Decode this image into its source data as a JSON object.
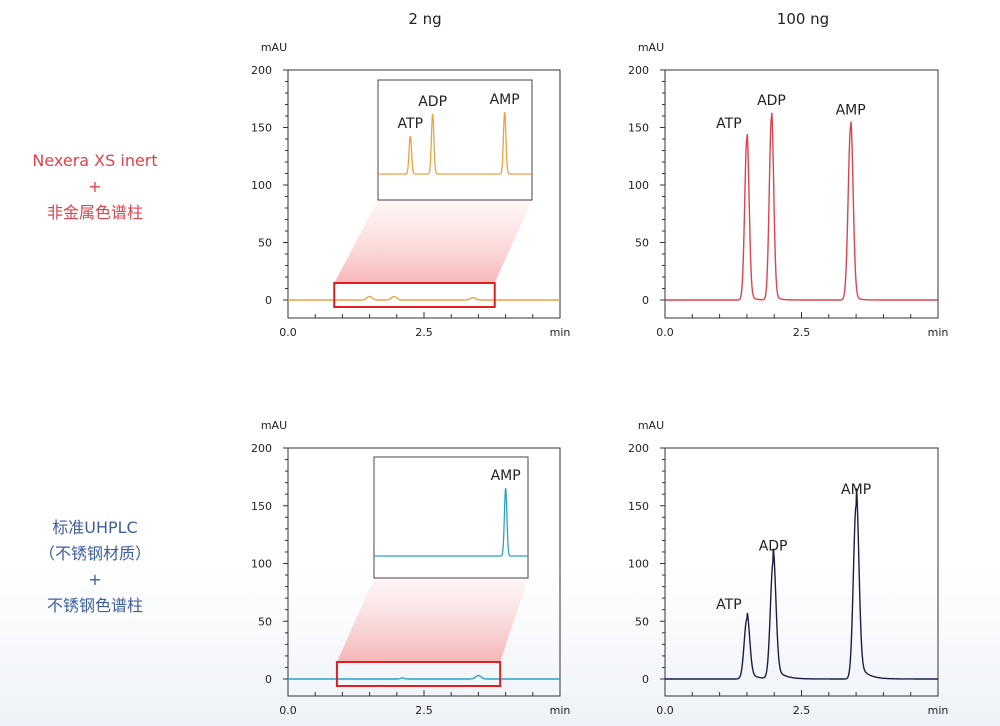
{
  "columns": [
    "2 ng",
    "100 ng"
  ],
  "rows": [
    {
      "lines": [
        "Nexera XS inert",
        "+",
        "非金属色谱柱"
      ],
      "color": "#e0424b"
    },
    {
      "lines": [
        "标准UHPLC",
        "（不锈钢材质）",
        "+",
        "不锈钢色谱柱"
      ],
      "color": "#3d5e9e"
    }
  ],
  "colors": {
    "orange": "#f0a040",
    "red": "#e0424b",
    "teal": "#2aa4c4",
    "navy": "#1c1c48",
    "highlight_box": "#e02020"
  },
  "chart_data": [
    {
      "type": "line",
      "panel": "top-left",
      "ylabel": "mAU",
      "xlabel": "min",
      "ylim": [
        0,
        200
      ],
      "xlim": [
        0,
        5
      ],
      "yticks": [
        "0",
        "50",
        "100",
        "150",
        "200"
      ],
      "xticks": [
        "0.0",
        "2.5"
      ],
      "xtick_values": [
        0,
        2.5
      ],
      "color": "#f0a040",
      "peaks": [
        {
          "x": 1.5,
          "height": 3,
          "width": 0.05
        },
        {
          "x": 1.95,
          "height": 3,
          "width": 0.05
        },
        {
          "x": 3.4,
          "height": 2,
          "width": 0.05
        }
      ],
      "highlight": {
        "x0": 0.85,
        "x1": 3.8
      },
      "inset": {
        "peaks": [
          {
            "name": "ATP",
            "x": 1.5,
            "height": 38
          },
          {
            "name": "ADP",
            "x": 1.95,
            "height": 60
          },
          {
            "name": "AMP",
            "x": 3.4,
            "height": 62
          }
        ]
      }
    },
    {
      "type": "line",
      "panel": "top-right",
      "ylabel": "mAU",
      "xlabel": "min",
      "ylim": [
        0,
        200
      ],
      "xlim": [
        0,
        5
      ],
      "yticks": [
        "0",
        "50",
        "100",
        "150",
        "200"
      ],
      "xticks": [
        "0.0",
        "2.5",
        "min"
      ],
      "xtick_values": [
        0,
        2.5
      ],
      "color": "#e0424b",
      "peaks": [
        {
          "name": "ATP",
          "x": 1.5,
          "height": 141,
          "width": 0.04
        },
        {
          "name": "ADP",
          "x": 1.95,
          "height": 159,
          "width": 0.04
        },
        {
          "name": "AMP",
          "x": 3.4,
          "height": 151,
          "width": 0.045
        }
      ]
    },
    {
      "type": "line",
      "panel": "bottom-left",
      "ylabel": "mAU",
      "xlabel": "min",
      "ylim": [
        0,
        200
      ],
      "xlim": [
        0,
        5
      ],
      "yticks": [
        "0",
        "50",
        "100",
        "150",
        "200"
      ],
      "xticks": [
        "0.0",
        "2.5"
      ],
      "xtick_values": [
        0,
        2.5
      ],
      "color": "#2aa4c4",
      "peaks": [
        {
          "x": 2.1,
          "height": 1,
          "width": 0.03
        },
        {
          "x": 3.5,
          "height": 3,
          "width": 0.05
        }
      ],
      "highlight": {
        "x0": 0.9,
        "x1": 3.9
      },
      "inset": {
        "peaks": [
          {
            "name": "AMP",
            "x": 3.5,
            "height": 68
          }
        ]
      }
    },
    {
      "type": "line",
      "panel": "bottom-right",
      "ylabel": "mAU",
      "xlabel": "min",
      "ylim": [
        0,
        200
      ],
      "xlim": [
        0,
        5
      ],
      "yticks": [
        "0",
        "50",
        "100",
        "150",
        "200"
      ],
      "xticks": [
        "0.0",
        "2.5",
        "min"
      ],
      "xtick_values": [
        0,
        2.5
      ],
      "color": "#1c1c48",
      "peaks": [
        {
          "name": "ATP",
          "x": 1.5,
          "height": 52,
          "width": 0.05
        },
        {
          "name": "ADP",
          "x": 1.98,
          "height": 101,
          "width": 0.05
        },
        {
          "name": "AMP",
          "x": 3.5,
          "height": 150,
          "width": 0.05
        }
      ]
    }
  ]
}
